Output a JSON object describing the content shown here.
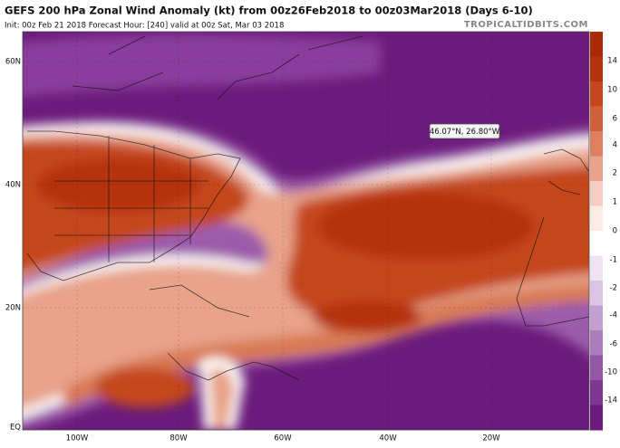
{
  "header": {
    "title": "GEFS 200 hPa Zonal Wind Anomaly (kt) from 00z26Feb2018 to 00z03Mar2018 (Days 6-10)",
    "subtitle": "Init: 00z Feb 21 2018   Forecast Hour: [240]   valid at 00z Sat, Mar 03 2018",
    "brand": "TROPICALTIDBITS.COM"
  },
  "map": {
    "tooltip": "46.07°N, 26.80°W",
    "lat_labels": [
      "60N",
      "40N",
      "20N",
      "EQ"
    ],
    "lon_labels": [
      "100W",
      "80W",
      "60W",
      "40W",
      "20W"
    ]
  },
  "colorbar": {
    "labels": [
      "14",
      "10",
      "6",
      "4",
      "2",
      "1",
      "0",
      "-1",
      "-2",
      "-4",
      "-6",
      "-10",
      "-14"
    ]
  }
}
